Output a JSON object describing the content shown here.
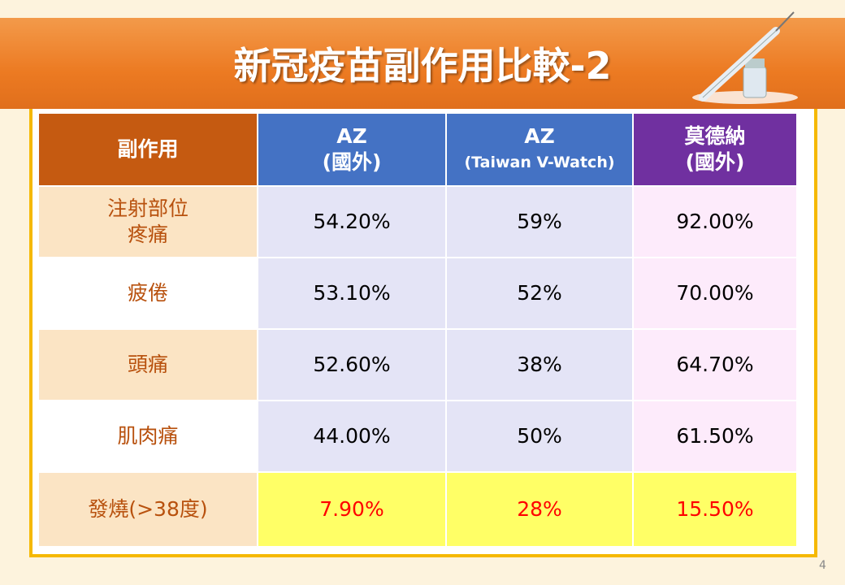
{
  "header": {
    "title": "新冠疫苗副作用比較-2"
  },
  "table": {
    "columns": [
      [
        "副作用"
      ],
      [
        "AZ",
        "(國外)"
      ],
      [
        "AZ",
        "(Taiwan V-Watch)"
      ],
      [
        "莫德納",
        "(國外)"
      ]
    ],
    "rows": [
      [
        [
          "注射部位",
          "疼痛"
        ],
        "54.20%",
        "59%",
        "92.00%"
      ],
      [
        [
          "疲倦"
        ],
        "53.10%",
        "52%",
        "70.00%"
      ],
      [
        [
          "頭痛"
        ],
        "52.60%",
        "38%",
        "64.70%"
      ],
      [
        [
          "肌肉痛"
        ],
        "44.00%",
        "50%",
        "61.50%"
      ],
      [
        [
          "發燒(>38度)"
        ],
        "7.90%",
        "28%",
        "15.50%"
      ]
    ]
  },
  "page_number": "4"
}
